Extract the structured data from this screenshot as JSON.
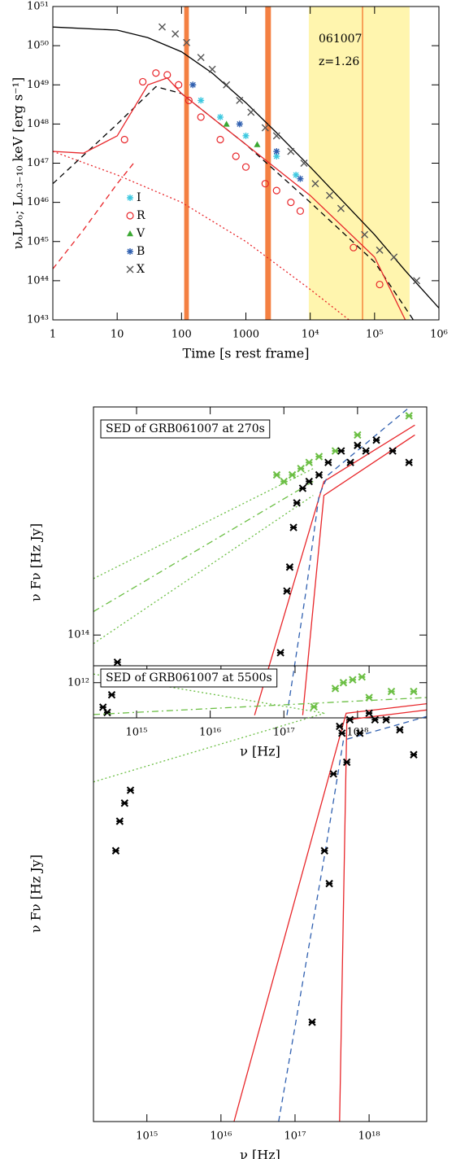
{
  "chart_data": [
    {
      "type": "scatter",
      "log_x": true,
      "log_y": true,
      "xlabel": "Time [s rest frame]",
      "ylabel": "νₒLνₒ;  L₀.₃₋₁₀ keV [erg s⁻¹]",
      "xlim": [
        1,
        1000000
      ],
      "ylim": [
        1e+43,
        1e+51
      ],
      "xticks": [
        1,
        10,
        100,
        1000,
        {
          "value": 10000,
          "label": "10⁴"
        },
        {
          "value": 100000,
          "label": "10⁵"
        },
        {
          "value": 1000000,
          "label": "10⁶"
        }
      ],
      "yticks": [
        {
          "value": 1e+43,
          "label": "10⁴³"
        },
        {
          "value": 1e+44,
          "label": "10⁴⁴"
        },
        {
          "value": 1e+45,
          "label": "10⁴⁵"
        },
        {
          "value": 1e+46,
          "label": "10⁴⁶"
        },
        {
          "value": 1e+47,
          "label": "10⁴⁷"
        },
        {
          "value": 1e+48,
          "label": "10⁴⁸"
        },
        {
          "value": 1e+49,
          "label": "10⁴⁹"
        },
        {
          "value": 1e+50,
          "label": "10⁵⁰"
        },
        {
          "value": 1e+51,
          "label": "10⁵¹"
        }
      ],
      "annotations": [
        "061007",
        "z=1.26"
      ],
      "legend": "center left",
      "bands": [
        {
          "x": [
            110,
            130
          ],
          "color": "#f26a21"
        },
        {
          "x": [
            2000,
            2450
          ],
          "color": "#f26a21"
        },
        {
          "x": [
            9500,
            350000
          ],
          "color": "#fff3a0"
        }
      ],
      "vlines": [
        {
          "x": 65000,
          "color": "#f26a21"
        }
      ],
      "series": [
        {
          "name": "I",
          "color": "#3cc8e0",
          "marker": "star",
          "x": [
            200,
            400,
            1000,
            3000,
            6000
          ],
          "values": [
            4e+48,
            1.5e+48,
            5e+47,
            1.5e+47,
            5e+46
          ]
        },
        {
          "name": "R",
          "color": "#e8262a",
          "marker": "circle",
          "x": [
            13,
            25,
            40,
            60,
            90,
            130,
            200,
            400,
            700,
            1000,
            2000,
            3000,
            5000,
            7000,
            47000,
            120000
          ],
          "values": [
            4e+47,
            1.2e+49,
            2e+49,
            1.8e+49,
            1e+49,
            4e+48,
            1.5e+48,
            4e+47,
            1.5e+47,
            8e+46,
            3e+46,
            2e+46,
            1e+46,
            6e+45,
            7e+44,
            8e+43
          ]
        },
        {
          "name": "V",
          "color": "#3aa832",
          "marker": "triangle",
          "x": [
            500,
            1500
          ],
          "values": [
            1e+48,
            3e+47
          ]
        },
        {
          "name": "B",
          "color": "#3060b0",
          "marker": "star",
          "x": [
            150,
            800,
            3000,
            7000
          ],
          "values": [
            1e+49,
            1e+48,
            2e+47,
            4e+46
          ]
        },
        {
          "name": "X",
          "color": "#555555",
          "marker": "x",
          "x": [
            50,
            80,
            120,
            200,
            300,
            500,
            800,
            1200,
            2000,
            3000,
            5000,
            8000,
            12000,
            20000,
            30000,
            70000,
            120000,
            200000,
            450000
          ],
          "values": [
            3e+50,
            2e+50,
            1.2e+50,
            5e+49,
            2.5e+49,
            1e+49,
            4e+48,
            2e+48,
            8e+47,
            5e+47,
            2e+47,
            1e+47,
            3e+46,
            1.5e+46,
            7e+45,
            1.5e+45,
            6e+44,
            4e+44,
            1e+44
          ]
        }
      ],
      "lines": [
        {
          "color": "#000000",
          "style": "solid",
          "x": [
            1,
            10,
            30,
            100,
            300,
            1000,
            3000,
            10000,
            30000,
            100000,
            300000,
            1000000
          ],
          "values": [
            3e+50,
            2.5e+50,
            1.6e+50,
            7e+49,
            2e+49,
            3.5e+48,
            6e+47,
            8e+46,
            1.2e+46,
            1.5e+45,
            1.8e+44,
            2e+43
          ]
        },
        {
          "color": "#000000",
          "style": "dashed",
          "x": [
            1,
            10,
            40,
            100,
            1000,
            10000,
            100000,
            400000
          ],
          "values": [
            3e+46,
            1e+48,
            9e+48,
            6e+48,
            3e+47,
            1e+46,
            3e+44,
            1e+43
          ]
        },
        {
          "color": "#e8262a",
          "style": "solid",
          "x": [
            1,
            3,
            10,
            30,
            60,
            100,
            1000,
            10000,
            100000,
            300000
          ],
          "values": [
            2e+47,
            1.8e+47,
            5e+47,
            1e+49,
            1.5e+49,
            6e+48,
            3e+47,
            1.5e+46,
            4e+44,
            1e+43
          ]
        },
        {
          "color": "#e8262a",
          "style": "dashed",
          "x": [
            1,
            3,
            10,
            18
          ],
          "values": [
            2e+44,
            2e+45,
            3e+46,
            1e+47
          ]
        },
        {
          "color": "#e8262a",
          "style": "dotted",
          "x": [
            1,
            10,
            100,
            1000,
            10000,
            40000
          ],
          "values": [
            2e+47,
            5e+46,
            1e+46,
            1e+45,
            6e+43,
            1e+43
          ]
        }
      ]
    },
    {
      "type": "scatter",
      "log_x": true,
      "log_y": true,
      "xlabel": "ν [Hz]",
      "ylabel": "ν Fν [Hz Jy]",
      "xlim": [
        260000000000000.0,
        8.7e+18
      ],
      "ylim": [
        61000000000000.0,
        390000000000000.0
      ],
      "xticks": [
        {
          "value": 1000000000000000.0,
          "label": "10¹⁵"
        },
        {
          "value": 1e+16,
          "label": "10¹⁶"
        },
        {
          "value": 1e+17,
          "label": "10¹⁷"
        },
        {
          "value": 1e+18,
          "label": "10¹⁸"
        }
      ],
      "yticks": [
        {
          "value": 100000000000000.0,
          "label": "10¹⁴"
        }
      ],
      "annotations": [
        "SED of GRB061007 at 270s"
      ],
      "series": [
        {
          "color": "#6cbf45",
          "marker": "asterisk",
          "x": [
            8e+16,
            1e+17,
            1.3e+17,
            1.7e+17,
            2.2e+17,
            3e+17,
            5e+17,
            1e+18,
            5e+18
          ],
          "values": [
            260000000000000.0,
            250000000000000.0,
            260000000000000.0,
            270000000000000.0,
            280000000000000.0,
            290000000000000.0,
            300000000000000.0,
            330000000000000.0,
            370000000000000.0
          ]
        },
        {
          "color": "#000000",
          "marker": "asterisk",
          "x": [
            350000000000000.0,
            400000000000000.0,
            460000000000000.0,
            550000000000000.0,
            9e+16,
            1.1e+17,
            1.2e+17,
            1.35e+17,
            1.5e+17,
            1.8e+17,
            2.2e+17,
            3e+17,
            4e+17,
            6e+17,
            8e+17,
            1e+18,
            1.3e+18,
            1.8e+18,
            3e+18,
            5e+18
          ],
          "values": [
            65000000000000.0,
            63000000000000.0,
            70000000000000.0,
            85000000000000.0,
            90000000000000.0,
            130000000000000.0,
            150000000000000.0,
            190000000000000.0,
            220000000000000.0,
            240000000000000.0,
            250000000000000.0,
            260000000000000.0,
            280000000000000.0,
            300000000000000.0,
            280000000000000.0,
            310000000000000.0,
            300000000000000.0,
            320000000000000.0,
            300000000000000.0,
            280000000000000.0
          ]
        }
      ],
      "lines": [
        {
          "color": "#e8262a",
          "style": "solid",
          "x": [
            4e+16,
            3.5e+17,
            6e+18
          ],
          "values": [
            62000000000000.0,
            250000000000000.0,
            350000000000000.0
          ]
        },
        {
          "color": "#e8262a",
          "style": "solid",
          "x": [
            1.8e+17,
            3.5e+17,
            6e+18
          ],
          "values": [
            62000000000000.0,
            230000000000000.0,
            330000000000000.0
          ]
        },
        {
          "color": "#3060b0",
          "style": "dashed",
          "x": [
            1.1e+17,
            2e+17,
            3e+17,
            4e+17,
            6e+18
          ],
          "values": [
            62000000000000.0,
            130000000000000.0,
            230000000000000.0,
            260000000000000.0,
            400000000000000.0
          ]
        },
        {
          "color": "#6cbf45",
          "style": "dashdot",
          "x": [
            260000000000000.0,
            2.5e+17
          ],
          "values": [
            115000000000000.0,
            250000000000000.0
          ]
        },
        {
          "color": "#6cbf45",
          "style": "dotted",
          "x": [
            260000000000000.0,
            2.5e+17
          ],
          "values": [
            140000000000000.0,
            270000000000000.0
          ]
        },
        {
          "color": "#6cbf45",
          "style": "dotted",
          "x": [
            260000000000000.0,
            2.5e+17
          ],
          "values": [
            95000000000000.0,
            230000000000000.0
          ]
        }
      ]
    },
    {
      "type": "scatter",
      "log_x": true,
      "log_y": true,
      "xlabel": "ν [Hz]",
      "ylabel": "ν Fν [Hz Jy]",
      "xlim": [
        190000000000000.0,
        6e+18
      ],
      "ylim": [
        220000000000.0,
        1060000000000.0
      ],
      "xticks": [
        {
          "value": 1000000000000000.0,
          "label": "10¹⁵"
        },
        {
          "value": 1e+16,
          "label": "10¹⁶"
        },
        {
          "value": 1e+17,
          "label": "10¹⁷"
        },
        {
          "value": 1e+18,
          "label": "10¹⁸"
        }
      ],
      "yticks": [
        {
          "value": 1000000000000.0,
          "label": "10¹²"
        }
      ],
      "annotations": [
        "SED of GRB061007 at 5500s"
      ],
      "series": [
        {
          "color": "#6cbf45",
          "marker": "asterisk",
          "x": [
            1.8e+17,
            3.5e+17,
            4.5e+17,
            6e+17,
            8e+17,
            1e+18,
            2e+18,
            4e+18
          ],
          "values": [
            920000000000.0,
            980000000000.0,
            1000000000000.0,
            1010000000000.0,
            1020000000000.0,
            950000000000.0,
            970000000000.0,
            970000000000.0
          ]
        },
        {
          "color": "#000000",
          "marker": "asterisk",
          "x": [
            380000000000000.0,
            430000000000000.0,
            500000000000000.0,
            600000000000000.0,
            1.7e+17,
            2.5e+17,
            2.9e+17,
            3.3e+17,
            4e+17,
            4.3e+17,
            5e+17,
            5.5e+17,
            7.5e+17,
            1e+18,
            1.2e+18,
            1.7e+18,
            2.6e+18,
            4e+18
          ],
          "values": [
            560000000000.0,
            620000000000.0,
            660000000000.0,
            690000000000.0,
            310000000000.0,
            560000000000.0,
            500000000000.0,
            730000000000.0,
            860000000000.0,
            840000000000.0,
            760000000000.0,
            880000000000.0,
            840000000000.0,
            900000000000.0,
            880000000000.0,
            880000000000.0,
            850000000000.0,
            780000000000.0
          ]
        }
      ],
      "lines": [
        {
          "color": "#e8262a",
          "style": "solid",
          "x": [
            1.5e+16,
            4.9e+17,
            6e+18
          ],
          "values": [
            220000000000.0,
            900000000000.0,
            930000000000.0
          ]
        },
        {
          "color": "#e8262a",
          "style": "solid",
          "x": [
            4e+17,
            5e+17,
            6e+18
          ],
          "values": [
            220000000000.0,
            880000000000.0,
            910000000000.0
          ]
        },
        {
          "color": "#3060b0",
          "style": "dashed",
          "x": [
            6e+16,
            2.5e+17,
            4.5e+17,
            6e+18
          ],
          "values": [
            220000000000.0,
            550000000000.0,
            820000000000.0,
            890000000000.0
          ]
        },
        {
          "color": "#6cbf45",
          "style": "dashdot",
          "x": [
            190000000000000.0,
            6e+18
          ],
          "values": [
            896000000000.0,
            950000000000.0
          ]
        },
        {
          "color": "#6cbf45",
          "style": "dotted",
          "x": [
            190000000000000.0,
            2.5e+17
          ],
          "values": [
            710000000000.0,
            900000000000.0
          ]
        },
        {
          "color": "#6cbf45",
          "style": "dotted",
          "x": [
            190000000000000.0,
            2.5e+17
          ],
          "values": [
            1030000000000.0,
            900000000000.0
          ]
        }
      ]
    }
  ]
}
